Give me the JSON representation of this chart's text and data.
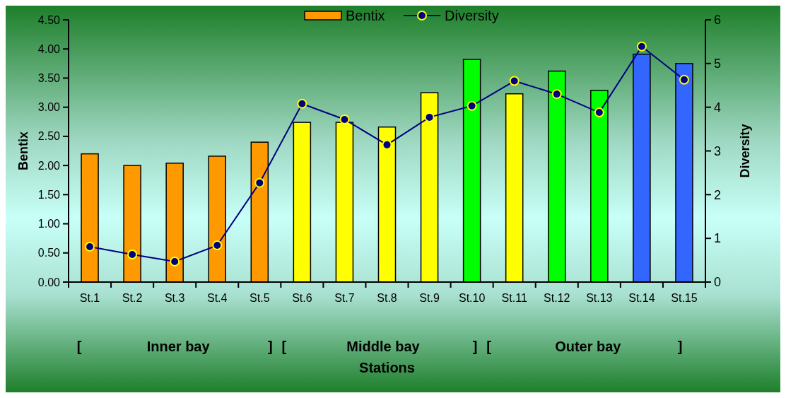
{
  "chart_data": {
    "type": "bar",
    "xlabel": "Stations",
    "ylabel": "Bentix",
    "y2label": "Diversity",
    "categories": [
      "St.1",
      "St.2",
      "St.3",
      "St.4",
      "St.5",
      "St.6",
      "St.7",
      "St.8",
      "St.9",
      "St.10",
      "St.11",
      "St.12",
      "St.13",
      "St.14",
      "St.15"
    ],
    "series": [
      {
        "name": "Bentix",
        "colors": [
          "#ff9900",
          "#ff9900",
          "#ff9900",
          "#ff9900",
          "#ff9900",
          "#ffff00",
          "#ffff00",
          "#ffff00",
          "#ffff00",
          "#00ff00",
          "#ffff00",
          "#00ff00",
          "#00ff00",
          "#3366ff",
          "#3366ff"
        ],
        "color": "#ff9900",
        "values": [
          2.2,
          2.0,
          2.04,
          2.16,
          2.4,
          2.74,
          2.74,
          2.66,
          3.25,
          3.82,
          3.23,
          3.62,
          3.29,
          3.91,
          3.75
        ]
      },
      {
        "name": "Diversity",
        "type": "line",
        "axis": "y2",
        "color": "#000080",
        "marker": "circle",
        "values": [
          0.81,
          0.63,
          0.47,
          0.84,
          2.27,
          4.08,
          3.72,
          3.14,
          3.77,
          4.03,
          4.6,
          4.3,
          3.88,
          5.39,
          4.63
        ]
      }
    ],
    "ylim": [
      0,
      4.5
    ],
    "yticks": [
      {
        "value": 0,
        "label": "0.00"
      },
      {
        "value": 0.5,
        "label": "0.50"
      },
      {
        "value": 1,
        "label": "1.00"
      },
      {
        "value": 1.5,
        "label": "1.50"
      },
      {
        "value": 2,
        "label": "2.00"
      },
      {
        "value": 2.5,
        "label": "2.50"
      },
      {
        "value": 3,
        "label": "3.00"
      },
      {
        "value": 3.5,
        "label": "3.50"
      },
      {
        "value": 4,
        "label": "4.00"
      },
      {
        "value": 4.5,
        "label": "4.50"
      }
    ],
    "y2lim": [
      0,
      6
    ],
    "y2ticks": [
      0,
      1,
      2,
      3,
      4,
      5,
      6
    ],
    "legend": "top",
    "grid": false,
    "annotations": [
      "[",
      "Inner bay",
      "]",
      "[",
      "Middle bay",
      "]",
      "[",
      "Outer bay",
      "]"
    ]
  }
}
